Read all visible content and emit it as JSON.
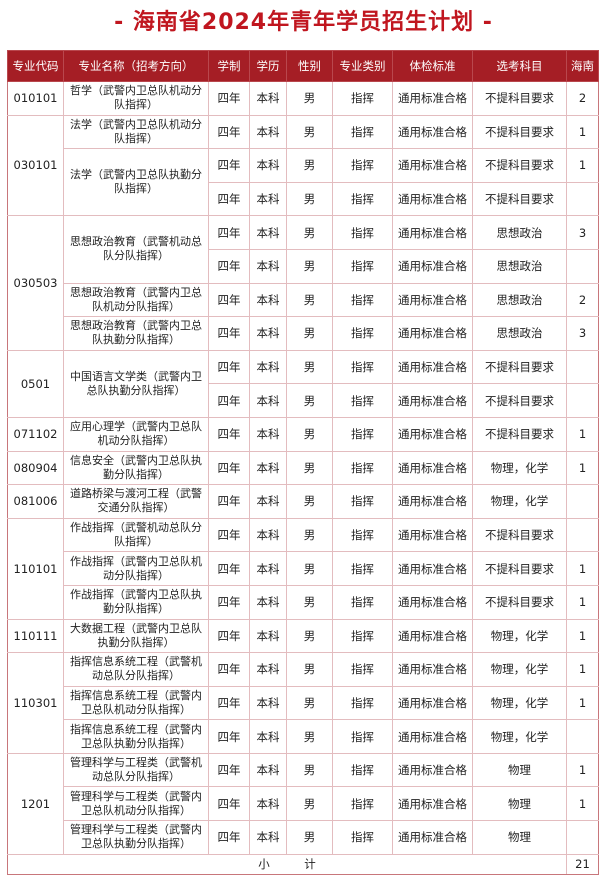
{
  "title": "- 海南省2024年青年学员招生计划 -",
  "colors": {
    "header_bg": "#a51e25",
    "title": "#c0161f",
    "border": "#e3bcbf"
  },
  "headers": [
    "专业代码",
    "专业名称（招考方向）",
    "学制",
    "学历",
    "性别",
    "专业类别",
    "体检标准",
    "选考科目",
    "海南"
  ],
  "groups": [
    {
      "code": "010101",
      "majors": [
        {
          "name": "哲学（武警内卫总队机动分队指挥）",
          "rows": [
            {
              "years": "四年",
              "degree": "本科",
              "gender": "男",
              "type": "指挥",
              "physical": "通用标准合格",
              "subjects": "不提科目要求",
              "quota": "2"
            }
          ]
        }
      ]
    },
    {
      "code": "030101",
      "majors": [
        {
          "name": "法学（武警内卫总队机动分队指挥）",
          "rows": [
            {
              "years": "四年",
              "degree": "本科",
              "gender": "男",
              "type": "指挥",
              "physical": "通用标准合格",
              "subjects": "不提科目要求",
              "quota": "1"
            }
          ]
        },
        {
          "name": "法学（武警内卫总队执勤分队指挥）",
          "rows": [
            {
              "years": "四年",
              "degree": "本科",
              "gender": "男",
              "type": "指挥",
              "physical": "通用标准合格",
              "subjects": "不提科目要求",
              "quota": "1"
            },
            {
              "years": "四年",
              "degree": "本科",
              "gender": "男",
              "type": "指挥",
              "physical": "通用标准合格",
              "subjects": "不提科目要求",
              "quota": ""
            }
          ]
        }
      ]
    },
    {
      "code": "030503",
      "majors": [
        {
          "name": "思想政治教育（武警机动总队分队指挥）",
          "rows": [
            {
              "years": "四年",
              "degree": "本科",
              "gender": "男",
              "type": "指挥",
              "physical": "通用标准合格",
              "subjects": "思想政治",
              "quota": "3"
            },
            {
              "years": "四年",
              "degree": "本科",
              "gender": "男",
              "type": "指挥",
              "physical": "通用标准合格",
              "subjects": "思想政治",
              "quota": ""
            }
          ]
        },
        {
          "name": "思想政治教育（武警内卫总队机动分队指挥）",
          "rows": [
            {
              "years": "四年",
              "degree": "本科",
              "gender": "男",
              "type": "指挥",
              "physical": "通用标准合格",
              "subjects": "思想政治",
              "quota": "2"
            }
          ]
        },
        {
          "name": "思想政治教育（武警内卫总队执勤分队指挥）",
          "rows": [
            {
              "years": "四年",
              "degree": "本科",
              "gender": "男",
              "type": "指挥",
              "physical": "通用标准合格",
              "subjects": "思想政治",
              "quota": "3"
            }
          ]
        }
      ]
    },
    {
      "code": "0501",
      "majors": [
        {
          "name": "中国语言文学类（武警内卫总队执勤分队指挥）",
          "rows": [
            {
              "years": "四年",
              "degree": "本科",
              "gender": "男",
              "type": "指挥",
              "physical": "通用标准合格",
              "subjects": "不提科目要求",
              "quota": ""
            },
            {
              "years": "四年",
              "degree": "本科",
              "gender": "男",
              "type": "指挥",
              "physical": "通用标准合格",
              "subjects": "不提科目要求",
              "quota": ""
            }
          ]
        }
      ]
    },
    {
      "code": "071102",
      "majors": [
        {
          "name": "应用心理学（武警内卫总队机动分队指挥）",
          "rows": [
            {
              "years": "四年",
              "degree": "本科",
              "gender": "男",
              "type": "指挥",
              "physical": "通用标准合格",
              "subjects": "不提科目要求",
              "quota": "1"
            }
          ]
        }
      ]
    },
    {
      "code": "080904",
      "majors": [
        {
          "name": "信息安全（武警内卫总队执勤分队指挥）",
          "rows": [
            {
              "years": "四年",
              "degree": "本科",
              "gender": "男",
              "type": "指挥",
              "physical": "通用标准合格",
              "subjects": "物理，化学",
              "quota": "1"
            }
          ]
        }
      ]
    },
    {
      "code": "081006",
      "majors": [
        {
          "name": "道路桥梁与渡河工程（武警交通分队指挥）",
          "rows": [
            {
              "years": "四年",
              "degree": "本科",
              "gender": "男",
              "type": "指挥",
              "physical": "通用标准合格",
              "subjects": "物理，化学",
              "quota": ""
            }
          ]
        }
      ]
    },
    {
      "code": "110101",
      "majors": [
        {
          "name": "作战指挥（武警机动总队分队指挥）",
          "rows": [
            {
              "years": "四年",
              "degree": "本科",
              "gender": "男",
              "type": "指挥",
              "physical": "通用标准合格",
              "subjects": "不提科目要求",
              "quota": ""
            }
          ]
        },
        {
          "name": "作战指挥（武警内卫总队机动分队指挥）",
          "rows": [
            {
              "years": "四年",
              "degree": "本科",
              "gender": "男",
              "type": "指挥",
              "physical": "通用标准合格",
              "subjects": "不提科目要求",
              "quota": "1"
            }
          ]
        },
        {
          "name": "作战指挥（武警内卫总队执勤分队指挥）",
          "rows": [
            {
              "years": "四年",
              "degree": "本科",
              "gender": "男",
              "type": "指挥",
              "physical": "通用标准合格",
              "subjects": "不提科目要求",
              "quota": "1"
            }
          ]
        }
      ]
    },
    {
      "code": "110111",
      "majors": [
        {
          "name": "大数据工程（武警内卫总队执勤分队指挥）",
          "rows": [
            {
              "years": "四年",
              "degree": "本科",
              "gender": "男",
              "type": "指挥",
              "physical": "通用标准合格",
              "subjects": "物理，化学",
              "quota": "1"
            }
          ]
        }
      ]
    },
    {
      "code": "110301",
      "majors": [
        {
          "name": "指挥信息系统工程（武警机动总队分队指挥）",
          "rows": [
            {
              "years": "四年",
              "degree": "本科",
              "gender": "男",
              "type": "指挥",
              "physical": "通用标准合格",
              "subjects": "物理，化学",
              "quota": "1"
            }
          ]
        },
        {
          "name": "指挥信息系统工程（武警内卫总队机动分队指挥）",
          "rows": [
            {
              "years": "四年",
              "degree": "本科",
              "gender": "男",
              "type": "指挥",
              "physical": "通用标准合格",
              "subjects": "物理，化学",
              "quota": "1"
            }
          ]
        },
        {
          "name": "指挥信息系统工程（武警内卫总队执勤分队指挥）",
          "rows": [
            {
              "years": "四年",
              "degree": "本科",
              "gender": "男",
              "type": "指挥",
              "physical": "通用标准合格",
              "subjects": "物理，化学",
              "quota": ""
            }
          ]
        }
      ]
    },
    {
      "code": "1201",
      "majors": [
        {
          "name": "管理科学与工程类（武警机动总队分队指挥）",
          "rows": [
            {
              "years": "四年",
              "degree": "本科",
              "gender": "男",
              "type": "指挥",
              "physical": "通用标准合格",
              "subjects": "物理",
              "quota": "1"
            }
          ]
        },
        {
          "name": "管理科学与工程类（武警内卫总队机动分队指挥）",
          "rows": [
            {
              "years": "四年",
              "degree": "本科",
              "gender": "男",
              "type": "指挥",
              "physical": "通用标准合格",
              "subjects": "物理",
              "quota": "1"
            }
          ]
        },
        {
          "name": "管理科学与工程类（武警内卫总队执勤分队指挥）",
          "rows": [
            {
              "years": "四年",
              "degree": "本科",
              "gender": "男",
              "type": "指挥",
              "physical": "通用标准合格",
              "subjects": "物理",
              "quota": ""
            }
          ]
        }
      ]
    }
  ],
  "total": {
    "label": "小　　　计",
    "value": "21"
  }
}
